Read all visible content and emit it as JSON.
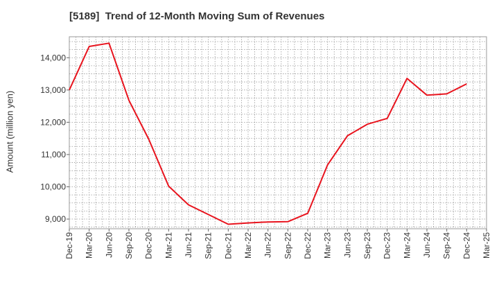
{
  "chart_data": {
    "type": "line",
    "title": "[5189]  Trend of 12-Month Moving Sum of Revenues",
    "xlabel": "",
    "ylabel": "Amount (million yen)",
    "categories": [
      "Dec-19",
      "Mar-20",
      "Jun-20",
      "Sep-20",
      "Dec-20",
      "Mar-21",
      "Jun-21",
      "Sep-21",
      "Dec-21",
      "Mar-22",
      "Jun-22",
      "Sep-22",
      "Dec-22",
      "Mar-23",
      "Jun-23",
      "Sep-23",
      "Dec-23",
      "Mar-24",
      "Jun-24",
      "Sep-24",
      "Dec-24",
      "Mar-25"
    ],
    "series": [
      {
        "values": [
          13000,
          14350,
          14450,
          12680,
          11470,
          10020,
          9440,
          9140,
          8840,
          8880,
          8910,
          8920,
          9180,
          10680,
          11580,
          11940,
          12120,
          13360,
          12840,
          12880,
          13190,
          null
        ],
        "color": "#e8131d"
      }
    ],
    "ylim": [
      8700,
      14650
    ],
    "yticks": [
      9000,
      10000,
      11000,
      12000,
      13000,
      14000
    ],
    "ytick_labels": [
      "9,000",
      "10,000",
      "11,000",
      "12,000",
      "13,000",
      "14,000"
    ],
    "grid": true,
    "grid_style": "dotted",
    "legend": "none"
  }
}
